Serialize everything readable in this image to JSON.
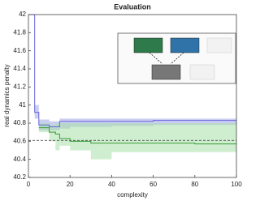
{
  "chart_data": {
    "type": "line",
    "title": "Evaluation",
    "xlabel": "complexity",
    "ylabel": "real dynamics penalty",
    "xlim": [
      0,
      100
    ],
    "xticks": [
      0,
      20,
      40,
      60,
      80,
      100
    ],
    "ylim": [
      40.2,
      42
    ],
    "yticks": [
      40.2,
      40.4,
      40.6,
      40.8,
      41,
      41.2,
      41.4,
      41.6,
      41.8,
      42
    ],
    "reference_line": 40.61,
    "step": true,
    "series": [
      {
        "color": "#6666dd",
        "band_color": "#9fa6e6",
        "x": [
          1,
          2,
          3,
          5,
          10,
          15,
          20,
          40,
          60,
          80,
          100
        ],
        "values": [
          42,
          42,
          40.92,
          40.78,
          40.76,
          40.82,
          40.82,
          40.82,
          40.83,
          40.83,
          40.83
        ],
        "band_lower": [
          42,
          42,
          40.85,
          40.72,
          40.72,
          40.74,
          40.76,
          40.77,
          40.78,
          40.78,
          40.78
        ],
        "band_upper": [
          42,
          42,
          41,
          40.84,
          40.82,
          40.85,
          40.85,
          40.85,
          40.85,
          40.85,
          40.85
        ]
      },
      {
        "color": "#3a9a3a",
        "band_color": "#a8e0a8",
        "x": [
          5,
          10,
          13,
          15,
          20,
          30,
          40,
          60,
          80,
          100
        ],
        "values": [
          40.75,
          40.7,
          40.68,
          40.63,
          40.6,
          40.58,
          40.58,
          40.58,
          40.57,
          40.57
        ],
        "band_lower": [
          40.7,
          40.6,
          40.5,
          40.55,
          40.5,
          40.4,
          40.48,
          40.48,
          40.48,
          40.48
        ],
        "band_upper": [
          40.8,
          40.78,
          40.8,
          40.8,
          40.8,
          40.8,
          40.8,
          40.8,
          40.8,
          40.8
        ]
      }
    ]
  }
}
